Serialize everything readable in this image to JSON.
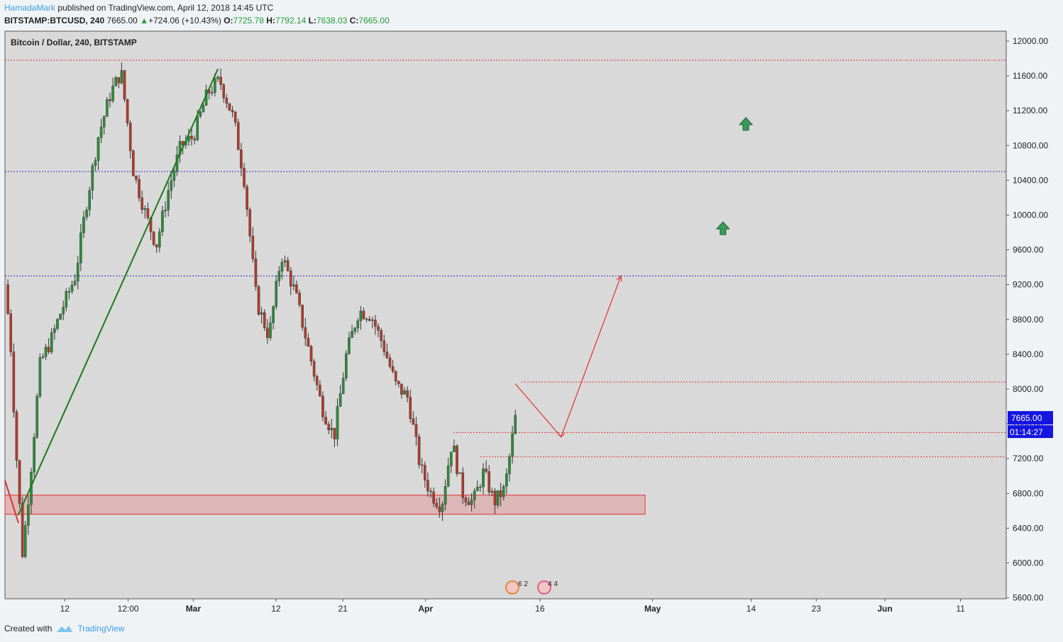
{
  "header": {
    "author": "HamadaMark",
    "published": "published on TradingView.com, April 12, 2018 14:45 UTC",
    "symbol": "BITSTAMP:BTCUSD, 240",
    "price": "7665.00",
    "change": "+724.06 (+10.43%)",
    "o_label": "O:",
    "o": "7725.78",
    "h_label": "H:",
    "h": "7792.14",
    "l_label": "L:",
    "l": "7638.03",
    "c_label": "C:",
    "c": "7665.00"
  },
  "footer": {
    "created_with": "Created with",
    "brand": "TradingView"
  },
  "chart_data": {
    "type": "candlestick",
    "title": "Bitcoin / Dollar, 240, BITSTAMP",
    "ylim": [
      5600,
      12000
    ],
    "y_ticks": [
      "12000.00",
      "11600.00",
      "11200.00",
      "10800.00",
      "10400.00",
      "10000.00",
      "9600.00",
      "9200.00",
      "8800.00",
      "8400.00",
      "8000.00",
      "7600.00",
      "7200.00",
      "6800.00",
      "6400.00",
      "6000.00",
      "5600.00"
    ],
    "x_ticks": [
      "12",
      "12:00",
      "Mar",
      "12",
      "21",
      "Apr",
      "16",
      "May",
      "14",
      "23",
      "Jun",
      "11"
    ],
    "last_price_label": "7665.00",
    "countdown_label": "01:14:27",
    "price_path": [
      {
        "t": 0.0,
        "p": 9200
      },
      {
        "t": 0.3,
        "p": 8600
      },
      {
        "t": 0.6,
        "p": 7400
      },
      {
        "t": 1.0,
        "p": 6100
      },
      {
        "t": 1.4,
        "p": 6900
      },
      {
        "t": 2.0,
        "p": 8300
      },
      {
        "t": 2.6,
        "p": 8550
      },
      {
        "t": 3.2,
        "p": 8900
      },
      {
        "t": 4.0,
        "p": 9300
      },
      {
        "t": 4.6,
        "p": 10100
      },
      {
        "t": 5.3,
        "p": 10900
      },
      {
        "t": 6.0,
        "p": 11400
      },
      {
        "t": 6.6,
        "p": 11650
      },
      {
        "t": 7.3,
        "p": 10500
      },
      {
        "t": 8.0,
        "p": 10000
      },
      {
        "t": 8.6,
        "p": 9650
      },
      {
        "t": 9.3,
        "p": 10300
      },
      {
        "t": 10.0,
        "p": 10800
      },
      {
        "t": 10.7,
        "p": 10900
      },
      {
        "t": 11.5,
        "p": 11400
      },
      {
        "t": 12.2,
        "p": 11550
      },
      {
        "t": 13.0,
        "p": 11100
      },
      {
        "t": 13.6,
        "p": 10400
      },
      {
        "t": 14.3,
        "p": 9000
      },
      {
        "t": 15.0,
        "p": 8600
      },
      {
        "t": 15.7,
        "p": 9550
      },
      {
        "t": 16.5,
        "p": 9100
      },
      {
        "t": 17.2,
        "p": 8500
      },
      {
        "t": 18.0,
        "p": 7800
      },
      {
        "t": 18.7,
        "p": 7450
      },
      {
        "t": 19.4,
        "p": 8400
      },
      {
        "t": 20.1,
        "p": 8900
      },
      {
        "t": 20.8,
        "p": 8850
      },
      {
        "t": 21.5,
        "p": 8500
      },
      {
        "t": 22.2,
        "p": 8050
      },
      {
        "t": 22.9,
        "p": 7900
      },
      {
        "t": 23.6,
        "p": 7100
      },
      {
        "t": 24.2,
        "p": 6800
      },
      {
        "t": 24.8,
        "p": 6650
      },
      {
        "t": 25.4,
        "p": 7400
      },
      {
        "t": 26.0,
        "p": 6800
      },
      {
        "t": 26.6,
        "p": 6700
      },
      {
        "t": 27.2,
        "p": 7050
      },
      {
        "t": 27.8,
        "p": 6700
      },
      {
        "t": 28.4,
        "p": 6850
      },
      {
        "t": 29.0,
        "p": 7665
      }
    ],
    "annotations": {
      "resistance_lines_red": [
        11780,
        8080,
        7500,
        7220
      ],
      "resistance_lines_blue": [
        10500,
        9300
      ],
      "support_zone": [
        6560,
        6780
      ],
      "trendline_green": [
        {
          "t": 0.75,
          "p": 6550
        },
        {
          "t": 12.1,
          "p": 11680
        }
      ],
      "projection_red": [
        {
          "t": 29.0,
          "p": 8060
        },
        {
          "t": 31.6,
          "p": 7450
        },
        {
          "t": 35.0,
          "p": 9300
        }
      ],
      "up_arrows": [
        {
          "t": 40.8,
          "p": 9840
        },
        {
          "t": 42.1,
          "p": 11040
        }
      ]
    }
  }
}
